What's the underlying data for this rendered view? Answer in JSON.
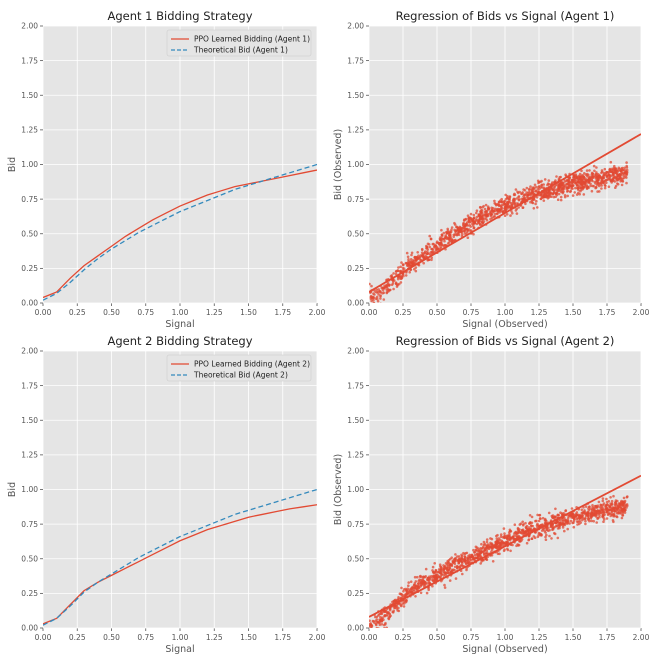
{
  "colors": {
    "learned": "#e24a33",
    "theoretical": "#348abd",
    "scatter": "#e24a33",
    "regression": "#e24a33",
    "panel_bg": "#e5e5e5",
    "grid": "#ffffff"
  },
  "chart_data": [
    {
      "type": "line",
      "title": "Agent 1 Bidding Strategy",
      "xlabel": "Signal",
      "ylabel": "Bid",
      "xlim": [
        0,
        2
      ],
      "ylim": [
        0,
        2
      ],
      "xticks": [
        "0.00",
        "0.25",
        "0.50",
        "0.75",
        "1.00",
        "1.25",
        "1.50",
        "1.75",
        "2.00"
      ],
      "yticks": [
        "0.00",
        "0.25",
        "0.50",
        "0.75",
        "1.00",
        "1.25",
        "1.50",
        "1.75",
        "2.00"
      ],
      "grid": true,
      "legend": "top-right",
      "series": [
        {
          "name": "PPO Learned Bidding (Agent 1)",
          "style": "solid",
          "x": [
            0,
            0.1,
            0.2,
            0.3,
            0.4,
            0.5,
            0.6,
            0.7,
            0.8,
            0.9,
            1.0,
            1.1,
            1.2,
            1.3,
            1.4,
            1.5,
            1.6,
            1.7,
            1.8,
            1.9,
            2.0
          ],
          "y": [
            0.04,
            0.08,
            0.18,
            0.27,
            0.34,
            0.41,
            0.48,
            0.54,
            0.6,
            0.65,
            0.7,
            0.74,
            0.78,
            0.81,
            0.84,
            0.86,
            0.88,
            0.9,
            0.92,
            0.94,
            0.96
          ]
        },
        {
          "name": "Theoretical Bid (Agent 1)",
          "style": "dashed",
          "x": [
            0,
            0.1,
            0.2,
            0.3,
            0.4,
            0.5,
            0.6,
            0.7,
            0.8,
            0.9,
            1.0,
            1.1,
            1.2,
            1.3,
            1.4,
            1.5,
            1.6,
            1.7,
            1.8,
            1.9,
            2.0
          ],
          "y": [
            0.02,
            0.07,
            0.15,
            0.24,
            0.32,
            0.39,
            0.45,
            0.51,
            0.56,
            0.61,
            0.66,
            0.7,
            0.74,
            0.78,
            0.82,
            0.85,
            0.88,
            0.91,
            0.94,
            0.97,
            1.0
          ]
        }
      ]
    },
    {
      "type": "scatter",
      "title": "Regression of Bids vs Signal (Agent 1)",
      "xlabel": "Signal (Observed)",
      "ylabel": "Bid (Observed)",
      "xlim": [
        0,
        2
      ],
      "ylim": [
        0,
        2
      ],
      "xticks": [
        "0.00",
        "0.25",
        "0.50",
        "0.75",
        "1.00",
        "1.25",
        "1.50",
        "1.75",
        "2.00"
      ],
      "yticks": [
        "0.00",
        "0.25",
        "0.50",
        "0.75",
        "1.00",
        "1.25",
        "1.50",
        "1.75",
        "2.00"
      ],
      "grid": true,
      "curve": {
        "x": [
          0,
          0.1,
          0.2,
          0.3,
          0.4,
          0.5,
          0.6,
          0.7,
          0.8,
          0.9,
          1.0,
          1.1,
          1.2,
          1.3,
          1.4,
          1.5,
          1.6,
          1.7,
          1.8,
          1.9
        ],
        "y": [
          0.04,
          0.08,
          0.18,
          0.27,
          0.34,
          0.41,
          0.48,
          0.54,
          0.6,
          0.65,
          0.7,
          0.74,
          0.78,
          0.81,
          0.84,
          0.86,
          0.88,
          0.9,
          0.92,
          0.94
        ]
      },
      "regression": {
        "x": [
          0,
          2
        ],
        "y": [
          0.08,
          1.22
        ]
      }
    },
    {
      "type": "line",
      "title": "Agent 2 Bidding Strategy",
      "xlabel": "Signal",
      "ylabel": "Bid",
      "xlim": [
        0,
        2
      ],
      "ylim": [
        0,
        2
      ],
      "xticks": [
        "0.00",
        "0.25",
        "0.50",
        "0.75",
        "1.00",
        "1.25",
        "1.50",
        "1.75",
        "2.00"
      ],
      "yticks": [
        "0.00",
        "0.25",
        "0.50",
        "0.75",
        "1.00",
        "1.25",
        "1.50",
        "1.75",
        "2.00"
      ],
      "grid": true,
      "legend": "top-right",
      "series": [
        {
          "name": "PPO Learned Bidding (Agent 2)",
          "style": "solid",
          "x": [
            0,
            0.1,
            0.2,
            0.3,
            0.4,
            0.5,
            0.6,
            0.7,
            0.8,
            0.9,
            1.0,
            1.1,
            1.2,
            1.3,
            1.4,
            1.5,
            1.6,
            1.7,
            1.8,
            1.9,
            2.0
          ],
          "y": [
            0.03,
            0.07,
            0.17,
            0.27,
            0.33,
            0.38,
            0.43,
            0.48,
            0.53,
            0.58,
            0.63,
            0.67,
            0.71,
            0.74,
            0.77,
            0.8,
            0.82,
            0.84,
            0.86,
            0.875,
            0.89
          ]
        },
        {
          "name": "Theoretical Bid (Agent 2)",
          "style": "dashed",
          "x": [
            0,
            0.1,
            0.2,
            0.3,
            0.4,
            0.5,
            0.6,
            0.7,
            0.8,
            0.9,
            1.0,
            1.1,
            1.2,
            1.3,
            1.4,
            1.5,
            1.6,
            1.7,
            1.8,
            1.9,
            2.0
          ],
          "y": [
            0.02,
            0.07,
            0.16,
            0.26,
            0.33,
            0.39,
            0.45,
            0.51,
            0.56,
            0.61,
            0.66,
            0.7,
            0.74,
            0.78,
            0.82,
            0.85,
            0.88,
            0.91,
            0.94,
            0.97,
            1.0
          ]
        }
      ]
    },
    {
      "type": "scatter",
      "title": "Regression of Bids vs Signal (Agent 2)",
      "xlabel": "Signal (Observed)",
      "ylabel": "Bid (Observed)",
      "xlim": [
        0,
        2
      ],
      "ylim": [
        0,
        2
      ],
      "xticks": [
        "0.00",
        "0.25",
        "0.50",
        "0.75",
        "1.00",
        "1.25",
        "1.50",
        "1.75",
        "2.00"
      ],
      "yticks": [
        "0.00",
        "0.25",
        "0.50",
        "0.75",
        "1.00",
        "1.25",
        "1.50",
        "1.75",
        "2.00"
      ],
      "grid": true,
      "curve": {
        "x": [
          0,
          0.1,
          0.2,
          0.3,
          0.4,
          0.5,
          0.6,
          0.7,
          0.8,
          0.9,
          1.0,
          1.1,
          1.2,
          1.3,
          1.4,
          1.5,
          1.6,
          1.7,
          1.8,
          1.9
        ],
        "y": [
          0.03,
          0.07,
          0.17,
          0.27,
          0.33,
          0.38,
          0.43,
          0.48,
          0.53,
          0.58,
          0.63,
          0.67,
          0.71,
          0.74,
          0.77,
          0.8,
          0.82,
          0.84,
          0.86,
          0.875
        ]
      },
      "regression": {
        "x": [
          0,
          2
        ],
        "y": [
          0.08,
          1.1
        ]
      }
    }
  ]
}
